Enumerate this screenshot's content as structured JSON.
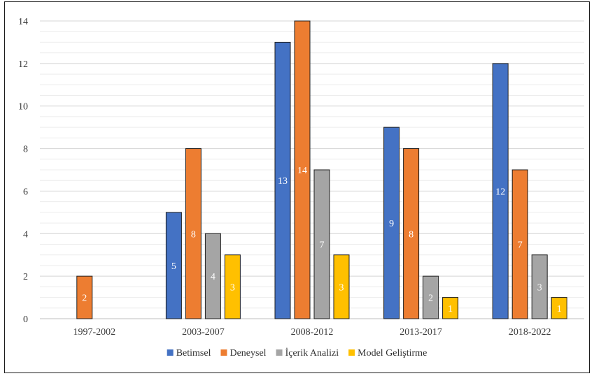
{
  "chart_data": {
    "type": "bar",
    "categories": [
      "1997-2002",
      "2003-2007",
      "2008-2012",
      "2013-2017",
      "2018-2022"
    ],
    "series": [
      {
        "name": "Betimsel",
        "color": "#4472C4",
        "values": [
          0,
          5,
          13,
          9,
          12
        ]
      },
      {
        "name": "Deneysel",
        "color": "#ED7D31",
        "values": [
          2,
          8,
          14,
          8,
          7
        ]
      },
      {
        "name": "İçerik Analizi",
        "color": "#A5A5A5",
        "values": [
          0,
          4,
          7,
          2,
          3
        ]
      },
      {
        "name": "Model Geliştirme",
        "color": "#FFC000",
        "values": [
          0,
          3,
          3,
          1,
          1
        ]
      }
    ],
    "ylim": [
      0,
      14
    ],
    "yticks": [
      0,
      2,
      4,
      6,
      8,
      10,
      12,
      14
    ],
    "grid": true,
    "legend_position": "bottom",
    "data_labels": true,
    "title": "",
    "xlabel": "",
    "ylabel": ""
  }
}
